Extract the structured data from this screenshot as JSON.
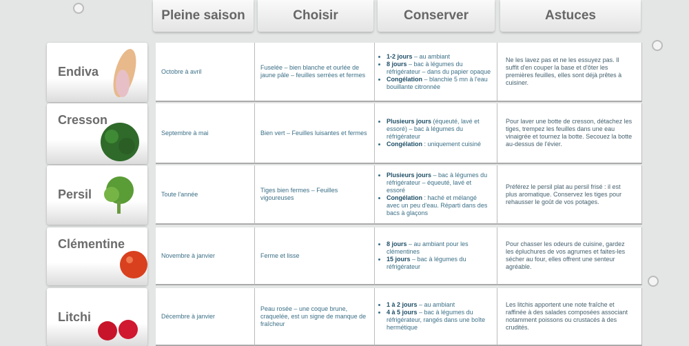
{
  "headers": [
    "Pleine saison",
    "Choisir",
    "Conserver",
    "Astuces"
  ],
  "rows": [
    {
      "name": "Endiva",
      "saison": "Octobre à avril",
      "choisir": "Fuselée – bien blanche et ourlée de jaune pâle – feuilles serrées et fermes",
      "conserver": [
        {
          "b": "1-2 jours",
          "t": " – au ambiant"
        },
        {
          "b": "8 jours",
          "t": " – bac à légumes du réfrigérateur – dans du papier opaque"
        },
        {
          "b": "Congélation",
          "t": " – blanchie 5 mn à l'eau bouillante citronnée"
        }
      ],
      "astuce": "Ne les lavez pas et ne les essuyez pas. Il suffit d'en couper la base et d'ôter les premières feuilles, elles sont déjà prêtes à cuisiner."
    },
    {
      "name": "Cresson",
      "saison": "Septembre à mai",
      "choisir": "Bien vert – Feuilles luisantes et fermes",
      "conserver": [
        {
          "b": "Plusieurs jours",
          "t": " (équeuté, lavé et essoré) – bac à légumes du réfrigérateur"
        },
        {
          "b": "Congélation",
          "t": " : uniquement cuisiné"
        }
      ],
      "astuce": "Pour laver une botte de cresson, détachez les tiges, trempez les feuilles dans une eau vinaigrée et tournez la botte. Secouez la botte au-dessus de l'évier."
    },
    {
      "name": "Persil",
      "saison": "Toute l'année",
      "choisir": "Tiges bien fermes – Feuilles vigoureuses",
      "conserver": [
        {
          "b": "Plusieurs jours",
          "t": " – bac à légumes du réfrigérateur – équeuté, lavé et essoré"
        },
        {
          "b": "Congélation",
          "t": " : haché et mélangé avec un peu d'eau. Réparti dans des bacs à glaçons"
        }
      ],
      "astuce": "Préférez le persil plat au persil frisé : il est plus aromatique. Conservez les tiges pour rehausser le goût de vos potages."
    },
    {
      "name": "Clémentine",
      "saison": "Novembre à janvier",
      "choisir": "Ferme et lisse",
      "conserver": [
        {
          "b": "8 jours",
          "t": " – au ambiant pour les clémentines"
        },
        {
          "b": "15 jours",
          "t": " – bac à légumes du réfrigérateur"
        }
      ],
      "astuce": "Pour chasser les odeurs de cuisine, gardez les épluchures de vos agrumes et faites-les sécher au four, elles offrent une senteur agréable."
    },
    {
      "name": "Litchi",
      "saison": "Décembre à janvier",
      "choisir": "Peau rosée – une coque brune, craquelée, est un signe de manque de fraîcheur",
      "conserver": [
        {
          "b": "1 à 2 jours",
          "t": " – au ambiant"
        },
        {
          "b": "4 à 5 jours",
          "t": " – bac à légumes du réfrigérateur, rangés dans une boîte hermétique"
        }
      ],
      "astuce": "Les litchis apportent une note fraîche et raffinée à des salades composées associant notamment poissons ou crustacés à des crudités."
    }
  ]
}
